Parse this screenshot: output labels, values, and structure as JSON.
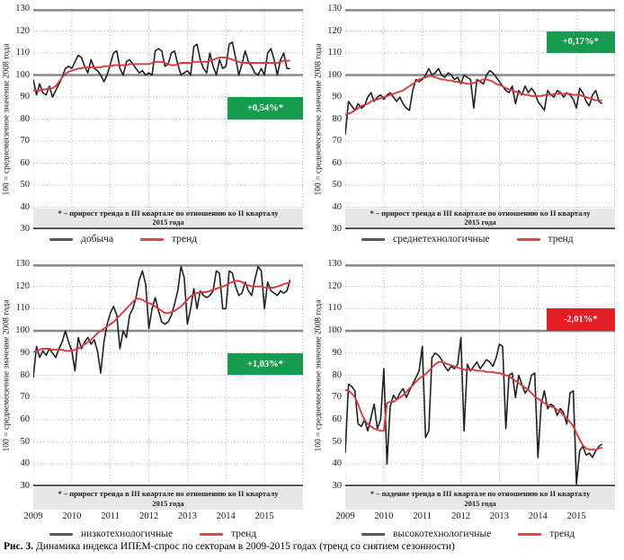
{
  "figure": {
    "caption_label": "Рис. 3.",
    "caption_text": " Динамика индекса ИПЕМ-спрос по секторам в 2009-2015 годах (тренд со снятием сезонности)"
  },
  "axis": {
    "y_title": "100 = среднемесячное значение 2008 года",
    "y_ticks": [
      130,
      120,
      110,
      100,
      90,
      80,
      70,
      60,
      50,
      40,
      30
    ],
    "x_years": [
      "2009",
      "2010",
      "2011",
      "2012",
      "2013",
      "2014",
      "2015"
    ]
  },
  "colors": {
    "series_black": "#231f20",
    "trend_red": "#d93a3e",
    "badge_green": "#179b4f",
    "badge_red": "#e31e24",
    "grid_dotted": "#b3b3b3",
    "grid_heavy": "#8a8a8a",
    "axis_bottom": "#3f3f3f",
    "note_bg": "#e7e7e7",
    "legend_series_dash": "#58595b",
    "legend_trend_dash": "#d9494e"
  },
  "chart_data": [
    {
      "type": "line",
      "position": "top-left",
      "x_start": "2009-01",
      "x_end": "2015-09",
      "ylim": [
        30,
        130
      ],
      "x_axis_labeled": false,
      "note_lines": [
        "* – прирост тренда в III квартале по отношению ко II кварталу",
        "2015 года"
      ],
      "badge": {
        "text": "+0,54%*",
        "color": "#179b4f",
        "y_band": [
          90,
          80
        ]
      },
      "legend": [
        {
          "label": "добыча",
          "dash_color": "#58595b"
        },
        {
          "label": "тренд",
          "dash_color": "#d9494e"
        }
      ],
      "series": [
        {
          "name": "добыча",
          "color": "#231f20",
          "values": [
            98,
            91,
            96,
            92,
            91,
            95,
            90,
            93,
            96,
            99,
            103,
            104,
            103,
            106,
            109,
            108,
            104,
            101,
            107,
            103,
            102,
            100,
            97,
            100,
            105,
            110,
            111,
            103,
            100,
            106,
            107,
            105,
            103,
            101,
            102,
            100,
            101,
            100,
            111,
            112,
            111,
            104,
            105,
            110,
            111,
            105,
            100,
            101,
            102,
            100,
            113,
            114,
            107,
            103,
            101,
            110,
            104,
            100,
            107,
            103,
            104,
            114,
            115,
            108,
            100,
            105,
            111,
            106,
            104,
            101,
            100,
            103,
            100,
            110,
            112,
            107,
            100,
            107,
            110,
            103,
            103
          ]
        },
        {
          "name": "тренд",
          "color": "#d93a3e",
          "values": [
            93,
            93,
            93,
            93.5,
            93.5,
            94,
            94,
            95,
            97,
            99,
            100.5,
            101.5,
            102,
            102.5,
            103,
            103,
            103.5,
            103.5,
            103.5,
            103.5,
            103.5,
            103.5,
            104,
            104,
            104,
            104.5,
            104.5,
            104.5,
            104.5,
            104.5,
            105,
            105,
            105,
            105,
            105,
            105,
            105,
            105.5,
            106,
            106,
            106,
            105.5,
            105,
            104.5,
            104.5,
            105,
            105.5,
            105.5,
            105.5,
            105.5,
            106,
            106,
            106,
            106,
            106,
            106.5,
            107,
            107.5,
            108,
            108,
            108,
            107.5,
            107,
            106.5,
            106,
            105.5,
            105.5,
            105.5,
            105.5,
            105.5,
            105.5,
            105.5,
            105.5,
            105.5,
            105.5,
            105.5,
            105.5,
            106,
            106.5,
            106.5,
            106.5
          ]
        }
      ]
    },
    {
      "type": "line",
      "position": "top-right",
      "x_start": "2009-01",
      "x_end": "2015-09",
      "ylim": [
        30,
        130
      ],
      "x_axis_labeled": false,
      "note_lines": [
        "* – прирост тренда в III квартале по отношению ко II кварталу",
        "2015 года"
      ],
      "badge": {
        "text": "+0,17%*",
        "color": "#179b4f",
        "y_band": [
          120,
          110
        ]
      },
      "legend": [
        {
          "label": "среднетехнологичные",
          "dash_color": "#58595b"
        },
        {
          "label": "тренд",
          "dash_color": "#d9494e"
        }
      ],
      "series": [
        {
          "name": "среднетехнологичные",
          "color": "#231f20",
          "values": [
            73,
            88,
            86,
            84,
            87,
            85,
            86,
            90,
            92,
            88,
            90,
            91,
            89,
            91,
            92,
            90,
            88,
            90,
            87,
            85,
            84,
            93,
            98,
            97,
            98,
            100,
            103,
            100,
            101,
            103,
            100,
            99,
            101,
            100,
            98,
            99,
            96,
            100,
            99,
            98,
            85,
            98,
            97,
            96,
            100,
            102,
            101,
            99,
            97,
            95,
            93,
            92,
            95,
            87,
            93,
            91,
            95,
            92,
            94,
            92,
            88,
            86,
            84,
            93,
            91,
            90,
            93,
            92,
            90,
            92,
            91,
            89,
            85,
            94,
            92,
            88,
            86,
            91,
            93,
            88,
            87
          ]
        },
        {
          "name": "тренд",
          "color": "#d93a3e",
          "values": [
            82,
            82.5,
            83,
            84,
            85,
            86,
            86.5,
            87,
            88,
            88.5,
            89,
            89.5,
            90,
            90.5,
            91,
            91.5,
            92,
            92.5,
            93,
            94,
            95,
            96,
            97,
            98,
            98.5,
            99,
            99.5,
            99.5,
            99,
            98.5,
            98,
            98,
            97.5,
            97.5,
            97,
            97,
            96.5,
            96.5,
            96,
            96,
            96.5,
            97,
            97.5,
            98,
            98,
            97.5,
            97,
            96,
            95.5,
            95,
            94,
            93.5,
            93,
            92.5,
            92,
            91.5,
            91,
            91,
            90.5,
            90.5,
            90.5,
            90.5,
            91,
            91,
            91,
            91.5,
            91.5,
            91.5,
            91.5,
            91.5,
            91.5,
            91,
            91,
            91,
            90.5,
            90,
            89.5,
            89,
            88.5,
            88.5,
            88.5
          ]
        }
      ]
    },
    {
      "type": "line",
      "position": "bottom-left",
      "x_start": "2009-01",
      "x_end": "2015-09",
      "ylim": [
        30,
        130
      ],
      "x_axis_labeled": true,
      "note_lines": [
        "* – прирост тренда в III квартале по отношению ко II кварталу",
        "2015 года"
      ],
      "badge": {
        "text": "+1,03%*",
        "color": "#179b4f",
        "y_band": [
          90,
          80
        ]
      },
      "legend": [
        {
          "label": "низкотехнологичные",
          "dash_color": "#58595b"
        },
        {
          "label": "тренд",
          "dash_color": "#d9494e"
        }
      ],
      "series": [
        {
          "name": "низкотехнологичные",
          "color": "#231f20",
          "values": [
            79,
            93,
            88,
            91,
            89,
            92,
            90,
            88,
            92,
            95,
            100,
            95,
            91,
            82,
            97,
            92,
            95,
            97,
            94,
            96,
            91,
            81,
            95,
            103,
            108,
            111,
            107,
            92,
            100,
            97,
            107,
            110,
            115,
            123,
            127,
            121,
            101,
            110,
            115,
            109,
            104,
            103,
            104,
            107,
            112,
            118,
            129,
            124,
            103,
            110,
            119,
            110,
            118,
            116,
            115,
            116,
            118,
            127,
            126,
            110,
            110,
            127,
            126,
            120,
            116,
            117,
            122,
            118,
            116,
            123,
            129,
            127,
            110,
            122,
            118,
            117,
            116,
            118,
            117,
            118,
            123
          ]
        },
        {
          "name": "тренд",
          "color": "#d93a3e",
          "values": [
            90.5,
            91,
            91.5,
            92,
            92,
            92,
            91.5,
            91.5,
            91.5,
            91.5,
            91,
            91,
            91,
            91.5,
            92,
            93,
            94,
            95,
            96,
            97.5,
            99,
            100,
            101,
            102,
            103,
            104,
            105.5,
            107,
            108.5,
            110,
            111.5,
            113,
            114.5,
            114.5,
            114,
            113,
            112.5,
            112,
            111,
            110,
            109,
            108,
            108,
            108.5,
            109,
            110,
            111,
            112.5,
            114,
            115.5,
            116.5,
            117,
            117.5,
            117.5,
            117.5,
            118,
            118.5,
            119,
            119.5,
            120,
            120.5,
            121.5,
            122,
            122.5,
            122.5,
            122,
            121,
            120.5,
            120,
            120,
            120,
            120,
            119.5,
            119.5,
            119.5,
            119.5,
            120,
            120.5,
            121,
            121.5,
            121.5
          ]
        }
      ]
    },
    {
      "type": "line",
      "position": "bottom-right",
      "x_start": "2009-01",
      "x_end": "2015-09",
      "ylim": [
        30,
        130
      ],
      "x_axis_labeled": true,
      "note_lines": [
        "* – падение тренда в III квартале по отношению ко II кварталу",
        "2015 года"
      ],
      "badge": {
        "text": "-2,01%*",
        "color": "#e31e24",
        "y_band": [
          110,
          100
        ]
      },
      "legend": [
        {
          "label": "высокотехнологичные",
          "dash_color": "#58595b"
        },
        {
          "label": "тренд",
          "dash_color": "#d9494e"
        }
      ],
      "series": [
        {
          "name": "высокотехнологичные",
          "color": "#231f20",
          "values": [
            45,
            76,
            75,
            73,
            58,
            57,
            60,
            55,
            61,
            67,
            56,
            60,
            83,
            40,
            66,
            71,
            69,
            72,
            74,
            70,
            73,
            76,
            79,
            82,
            93,
            52,
            55,
            88,
            90,
            89,
            87,
            84,
            82,
            84,
            83,
            85,
            97,
            55,
            85,
            82,
            84,
            86,
            83,
            85,
            87,
            86,
            84,
            88,
            94,
            93,
            56,
            80,
            81,
            70,
            80,
            76,
            72,
            74,
            80,
            81,
            43,
            67,
            73,
            65,
            67,
            66,
            62,
            65,
            63,
            58,
            72,
            73,
            31,
            46,
            48,
            44,
            45,
            43,
            46,
            48,
            49
          ]
        },
        {
          "name": "тренд",
          "color": "#d93a3e",
          "values": [
            73.5,
            73,
            72,
            70,
            67,
            63,
            60,
            58,
            57,
            56,
            55.5,
            55,
            55,
            67.5,
            68,
            68,
            69,
            70,
            71,
            72.5,
            74,
            75.5,
            77,
            78.5,
            79.5,
            80.5,
            82,
            83.5,
            85,
            86,
            86,
            85.5,
            85,
            84.5,
            84,
            83.5,
            83,
            82.5,
            82.5,
            82.5,
            82.5,
            82,
            82,
            82,
            81.5,
            81.5,
            81.5,
            81,
            81,
            80.5,
            80,
            79.5,
            78.5,
            77.5,
            76.5,
            75.5,
            74.5,
            73.5,
            72,
            70.5,
            69.5,
            68.5,
            67.5,
            66.5,
            66,
            65.5,
            64.5,
            63.5,
            62,
            60.5,
            59,
            57,
            54,
            51,
            48.5,
            47,
            46.5,
            46.5,
            46.5,
            47,
            47.5
          ]
        }
      ]
    }
  ]
}
